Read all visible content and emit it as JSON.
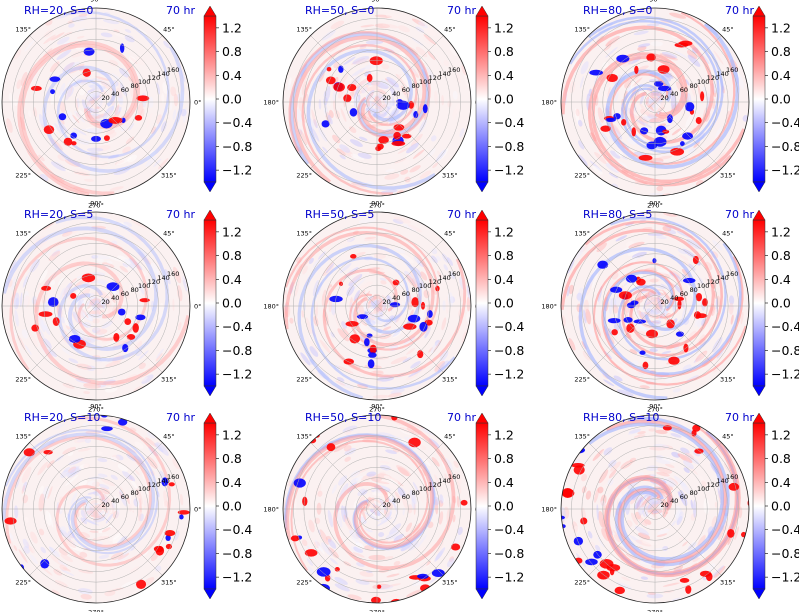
{
  "figure": {
    "time_label": "70 hr",
    "colorbar": {
      "ticks": [
        "1.2",
        "0.8",
        "0.4",
        "0.0",
        "−0.4",
        "−0.8",
        "−1.2"
      ],
      "tick_values": [
        1.2,
        0.8,
        0.4,
        0.0,
        -0.4,
        -0.8,
        -1.2
      ],
      "vmin": -1.4,
      "vmax": 1.4,
      "colors": {
        "low": "#0000ff",
        "mid": "#ffffff",
        "high": "#ff0000"
      }
    },
    "angle_labels": [
      "45°",
      "90°",
      "135°",
      "180°",
      "225°",
      "270°",
      "315°",
      "0°"
    ],
    "angle_values": [
      45,
      90,
      135,
      180,
      225,
      270,
      315,
      0
    ],
    "radial_labels": [
      "20",
      "40",
      "60",
      "80",
      "100",
      "120",
      "140",
      "160"
    ],
    "radial_values": [
      20,
      40,
      60,
      80,
      100,
      120,
      140,
      160
    ],
    "rmax": 180
  },
  "chart_data": [
    {
      "type": "heatmap",
      "projection": "polar",
      "title": "RH=20, S=0",
      "time": "70 hr",
      "colormap": "bwr",
      "vmin": -1.4,
      "vmax": 1.4
    },
    {
      "type": "heatmap",
      "projection": "polar",
      "title": "RH=50, S=0",
      "time": "70 hr",
      "colormap": "bwr",
      "vmin": -1.4,
      "vmax": 1.4
    },
    {
      "type": "heatmap",
      "projection": "polar",
      "title": "RH=80, S=0",
      "time": "70 hr",
      "colormap": "bwr",
      "vmin": -1.4,
      "vmax": 1.4
    },
    {
      "type": "heatmap",
      "projection": "polar",
      "title": "RH=20, S=5",
      "time": "70 hr",
      "colormap": "bwr",
      "vmin": -1.4,
      "vmax": 1.4
    },
    {
      "type": "heatmap",
      "projection": "polar",
      "title": "RH=50, S=5",
      "time": "70 hr",
      "colormap": "bwr",
      "vmin": -1.4,
      "vmax": 1.4
    },
    {
      "type": "heatmap",
      "projection": "polar",
      "title": "RH=80, S=5",
      "time": "70 hr",
      "colormap": "bwr",
      "vmin": -1.4,
      "vmax": 1.4
    },
    {
      "type": "heatmap",
      "projection": "polar",
      "title": "RH=20, S=10",
      "time": "70 hr",
      "colormap": "bwr",
      "vmin": -1.4,
      "vmax": 1.4
    },
    {
      "type": "heatmap",
      "projection": "polar",
      "title": "RH=50, S=10",
      "time": "70 hr",
      "colormap": "bwr",
      "vmin": -1.4,
      "vmax": 1.4
    },
    {
      "type": "heatmap",
      "projection": "polar",
      "title": "RH=80, S=10",
      "time": "70 hr",
      "colormap": "bwr",
      "vmin": -1.4,
      "vmax": 1.4
    }
  ]
}
